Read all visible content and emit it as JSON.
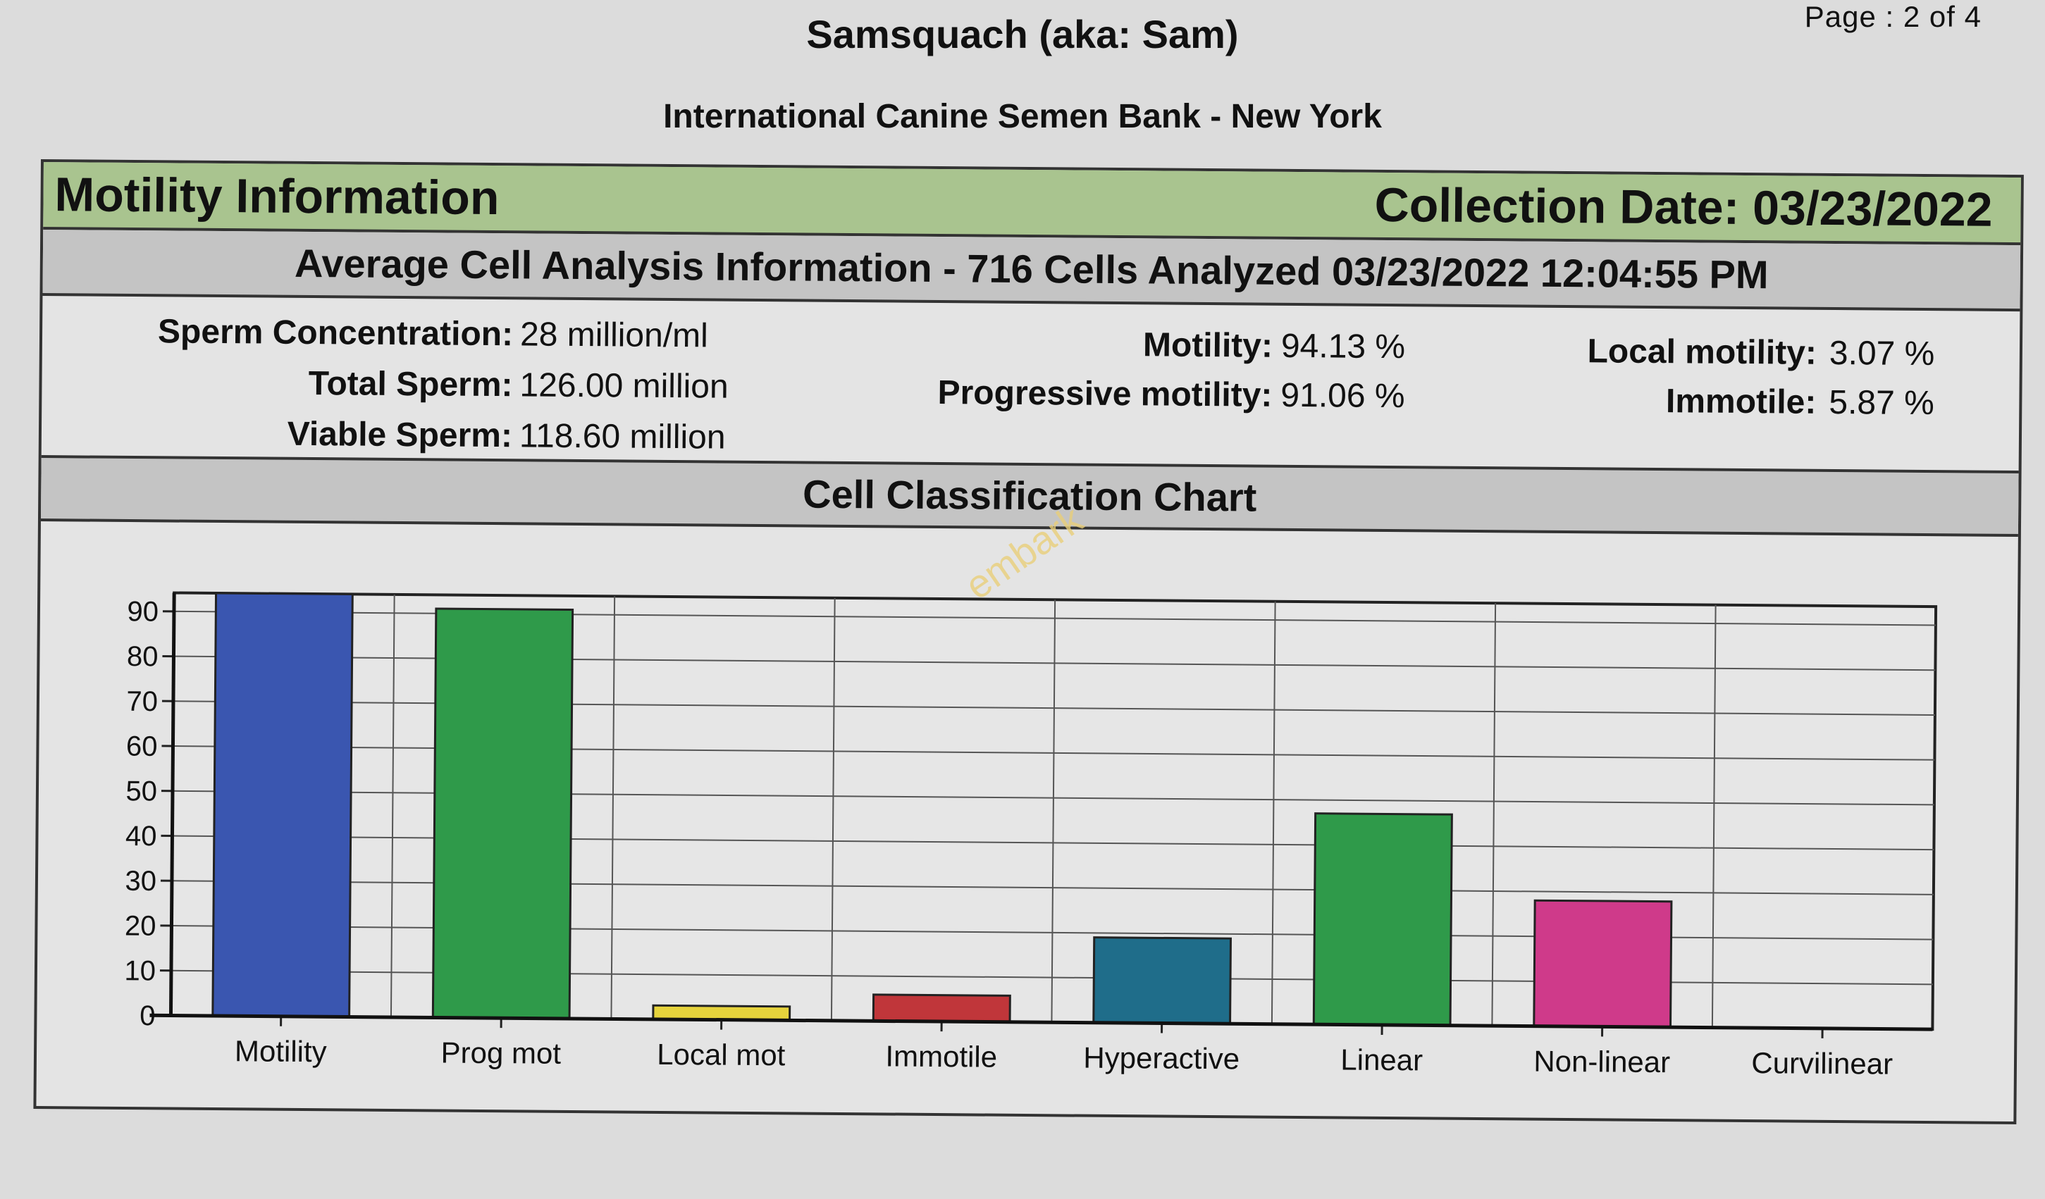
{
  "page_label": "Page :",
  "page_value": "2 of 4",
  "title": "Samsquach (aka: Sam)",
  "subtitle": "International Canine Semen Bank - New York",
  "section": {
    "heading": "Motility Information",
    "collection_date": "Collection Date: 03/23/2022"
  },
  "analysis_heading": "Average Cell Analysis Information - 716 Cells Analyzed 03/23/2022 12:04:55 PM",
  "stats": {
    "concentration_label": "Sperm Concentration:",
    "concentration_value": "28 million/ml",
    "total_label": "Total Sperm:",
    "total_value": "126.00 million",
    "viable_label": "Viable Sperm:",
    "viable_value": "118.60 million",
    "motility_label": "Motility:",
    "motility_value": "94.13 %",
    "progressive_label": "Progressive motility:",
    "progressive_value": "91.06 %",
    "local_label": "Local motility:",
    "local_value": "3.07 %",
    "immotile_label": "Immotile:",
    "immotile_value": "5.87 %"
  },
  "chart_heading": "Cell Classification Chart",
  "watermark": "embark",
  "chart_data": {
    "type": "bar",
    "title": "Cell Classification Chart",
    "categories": [
      "Motility",
      "Prog mot",
      "Local mot",
      "Immotile",
      "Hyperactive",
      "Linear",
      "Non-linear",
      "Curvilinear"
    ],
    "values": [
      94.13,
      91.06,
      3.07,
      5.87,
      19,
      47,
      28,
      0
    ],
    "colors": [
      "#3a56b0",
      "#2f9a4a",
      "#e6d33c",
      "#c0363a",
      "#1f6d8a",
      "#2f9a4a",
      "#cf3a8a",
      "#888888"
    ],
    "y_ticks": [
      0,
      10,
      20,
      30,
      40,
      50,
      60,
      70,
      80,
      90
    ],
    "ylim": [
      0,
      94.13
    ],
    "grid": true
  }
}
